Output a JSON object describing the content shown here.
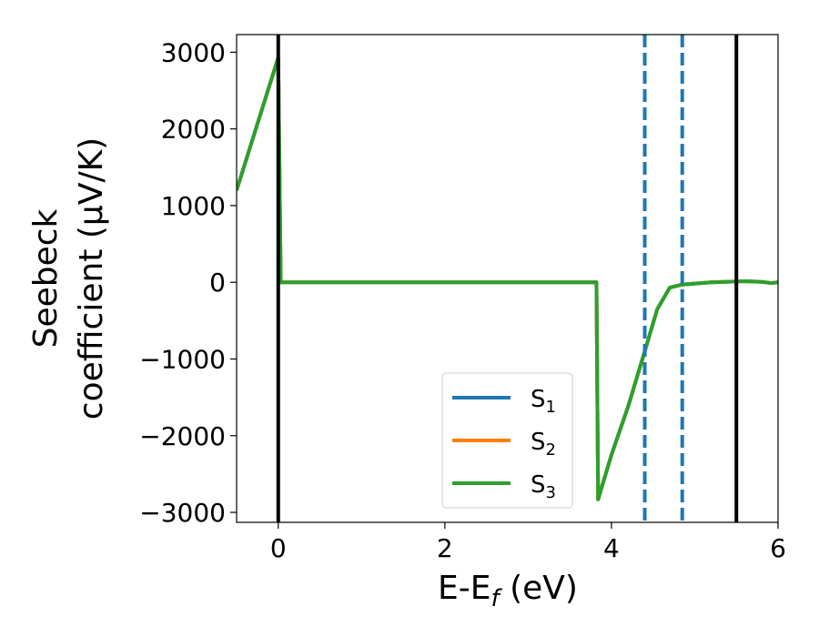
{
  "chart_data": {
    "type": "line",
    "xlabel": "E-E",
    "xlabel_sub": "f",
    "xlabel_unit": " (eV)",
    "ylabel_line1": "Seebeck",
    "ylabel_line2": "coefficient  (μV/K)",
    "xlim": [
      -0.5,
      6
    ],
    "ylim": [
      -3130,
      3230
    ],
    "xticks": [
      0,
      2,
      4,
      6
    ],
    "xtick_labels": [
      "0",
      "2",
      "4",
      "6"
    ],
    "yticks": [
      -3000,
      -2000,
      -1000,
      0,
      1000,
      2000,
      3000
    ],
    "ytick_labels": [
      "−3000",
      "−2000",
      "−1000",
      "0",
      "1000",
      "2000",
      "3000"
    ],
    "grid": false,
    "legend_position": "lower-center",
    "series": [
      {
        "name": "S",
        "name_sub": "1",
        "color": "#1f77b4",
        "points": [
          [
            -0.5,
            1200
          ],
          [
            0.0,
            2930
          ],
          [
            0.03,
            0
          ],
          [
            3.82,
            0
          ],
          [
            3.84,
            -2830
          ],
          [
            4.0,
            -2250
          ],
          [
            4.2,
            -1620
          ],
          [
            4.4,
            -900
          ],
          [
            4.55,
            -350
          ],
          [
            4.7,
            -70
          ],
          [
            4.85,
            -30
          ],
          [
            5.2,
            0
          ],
          [
            5.6,
            15
          ],
          [
            5.8,
            5
          ],
          [
            5.92,
            -10
          ],
          [
            6.0,
            0
          ]
        ]
      },
      {
        "name": "S",
        "name_sub": "2",
        "color": "#ff7f0e",
        "points": [
          [
            -0.5,
            1200
          ],
          [
            0.0,
            2930
          ],
          [
            0.03,
            0
          ],
          [
            3.82,
            0
          ],
          [
            3.84,
            -2830
          ],
          [
            4.0,
            -2250
          ],
          [
            4.2,
            -1620
          ],
          [
            4.4,
            -900
          ],
          [
            4.55,
            -350
          ],
          [
            4.7,
            -70
          ],
          [
            4.85,
            -30
          ],
          [
            5.2,
            0
          ],
          [
            5.6,
            15
          ],
          [
            5.8,
            5
          ],
          [
            5.92,
            -10
          ],
          [
            6.0,
            0
          ]
        ]
      },
      {
        "name": "S",
        "name_sub": "3",
        "color": "#2ca02c",
        "points": [
          [
            -0.5,
            1200
          ],
          [
            0.0,
            2930
          ],
          [
            0.03,
            0
          ],
          [
            3.82,
            0
          ],
          [
            3.84,
            -2830
          ],
          [
            4.0,
            -2250
          ],
          [
            4.2,
            -1620
          ],
          [
            4.4,
            -900
          ],
          [
            4.55,
            -350
          ],
          [
            4.7,
            -70
          ],
          [
            4.85,
            -30
          ],
          [
            5.2,
            0
          ],
          [
            5.6,
            15
          ],
          [
            5.8,
            5
          ],
          [
            5.92,
            -10
          ],
          [
            6.0,
            0
          ]
        ]
      }
    ],
    "vlines": [
      {
        "x": 0.0,
        "color": "#000000",
        "style": "solid"
      },
      {
        "x": 5.5,
        "color": "#000000",
        "style": "solid"
      },
      {
        "x": 4.4,
        "color": "#1f77b4",
        "style": "dashed"
      },
      {
        "x": 4.85,
        "color": "#1f77b4",
        "style": "dashed"
      }
    ]
  }
}
